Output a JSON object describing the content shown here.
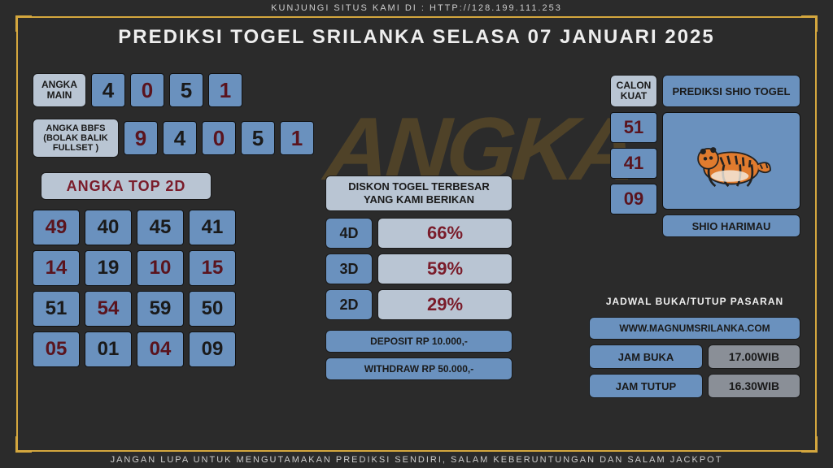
{
  "colors": {
    "bg": "#2b2b2b",
    "accent": "#d4a73e",
    "box_primary": "#6a91be",
    "box_light": "#b9c5d3",
    "box_gray": "#8a8f97",
    "text_dark": "#1a1a1a",
    "text_red": "#5a141e",
    "text_maroon": "#7a1c2a"
  },
  "top_banner": "KUNJUNGI SITUS KAMI DI : HTTP://128.199.111.253",
  "title": "PREDIKSI TOGEL SRILANKA SELASA 07 JANUARI 2025",
  "bottom_banner": "JANGAN LUPA UNTUK MENGUTAMAKAN PREDIKSI SENDIRI, SALAM KEBERUNTUNGAN DAN SALAM JACKPOT",
  "watermark": "ANGKA",
  "angka_main": {
    "label": "ANGKA MAIN",
    "digits": [
      {
        "v": "4",
        "c": "black"
      },
      {
        "v": "0",
        "c": "dark"
      },
      {
        "v": "5",
        "c": "black"
      },
      {
        "v": "1",
        "c": "dark"
      }
    ]
  },
  "bbfs": {
    "label": "ANGKA BBFS (BOLAK BALIK FULLSET )",
    "digits": [
      {
        "v": "9",
        "c": "dark"
      },
      {
        "v": "4",
        "c": "black"
      },
      {
        "v": "0",
        "c": "dark"
      },
      {
        "v": "5",
        "c": "black"
      },
      {
        "v": "1",
        "c": "dark"
      }
    ]
  },
  "top2d": {
    "label": "ANGKA TOP 2D",
    "cells": [
      {
        "v": "49",
        "c": "red"
      },
      {
        "v": "40",
        "c": "blk"
      },
      {
        "v": "45",
        "c": "blk"
      },
      {
        "v": "41",
        "c": "blk"
      },
      {
        "v": "14",
        "c": "red"
      },
      {
        "v": "19",
        "c": "blk"
      },
      {
        "v": "10",
        "c": "red"
      },
      {
        "v": "15",
        "c": "red"
      },
      {
        "v": "51",
        "c": "blk"
      },
      {
        "v": "54",
        "c": "red"
      },
      {
        "v": "59",
        "c": "blk"
      },
      {
        "v": "50",
        "c": "blk"
      },
      {
        "v": "05",
        "c": "red"
      },
      {
        "v": "01",
        "c": "blk"
      },
      {
        "v": "04",
        "c": "red"
      },
      {
        "v": "09",
        "c": "blk"
      }
    ]
  },
  "discount": {
    "title": "DISKON TOGEL TERBESAR YANG KAMI BERIKAN",
    "rows": [
      {
        "label": "4D",
        "value": "66%"
      },
      {
        "label": "3D",
        "value": "59%"
      },
      {
        "label": "2D",
        "value": "29%"
      }
    ],
    "deposit": "DEPOSIT RP 10.000,-",
    "withdraw": "WITHDRAW RP 50.000,-"
  },
  "calon": {
    "label": "CALON KUAT",
    "nums": [
      "51",
      "41",
      "09"
    ]
  },
  "shio": {
    "title": "PREDIKSI SHIO TOGEL",
    "name": "SHIO HARIMAU",
    "animal": "tiger"
  },
  "jadwal": {
    "title": "JADWAL BUKA/TUTUP PASARAN",
    "site": "WWW.MAGNUMSRILANKA.COM",
    "buka_label": "JAM BUKA",
    "buka_val": "17.00WIB",
    "tutup_label": "JAM TUTUP",
    "tutup_val": "16.30WIB"
  }
}
